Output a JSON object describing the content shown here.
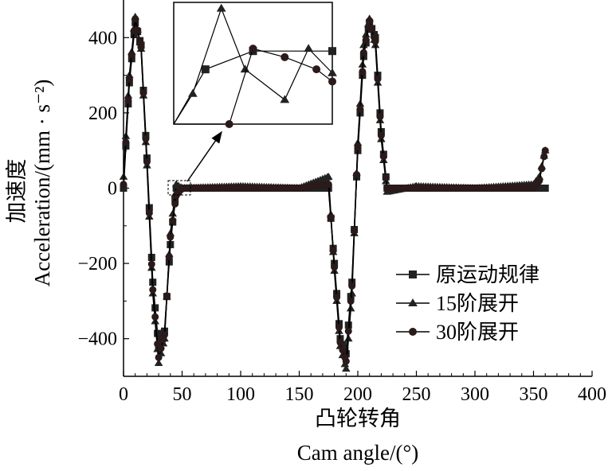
{
  "chart_data": {
    "type": "line",
    "xlabel_cn": "凸轮转角",
    "xlabel_en": "Cam angle/(°)",
    "ylabel_cn": "加速度",
    "ylabel_en": "Acceleration/(mm · s⁻²)",
    "xlim": [
      0,
      400
    ],
    "ylim": [
      -500,
      500
    ],
    "xticks": [
      0,
      50,
      100,
      150,
      200,
      250,
      300,
      350,
      400
    ],
    "yticks": [
      -400,
      -200,
      0,
      200,
      400
    ],
    "legend_position": "lower-right",
    "grid": false,
    "series": [
      {
        "name": "原运动规律",
        "marker": "square",
        "x": [
          0,
          5,
          10,
          15,
          20,
          25,
          30,
          35,
          40,
          45,
          50,
          100,
          150,
          175,
          180,
          185,
          190,
          195,
          200,
          205,
          210,
          215,
          220,
          225,
          250,
          300,
          350,
          355,
          360
        ],
        "y": [
          0,
          280,
          440,
          380,
          80,
          -250,
          -420,
          -380,
          -150,
          0,
          0,
          0,
          0,
          0,
          -200,
          -400,
          -440,
          -250,
          100,
          350,
          440,
          400,
          150,
          0,
          0,
          0,
          0,
          0,
          0
        ]
      },
      {
        "name": "15阶展开",
        "marker": "triangle",
        "x": [
          0,
          5,
          10,
          15,
          20,
          25,
          30,
          35,
          40,
          45,
          50,
          100,
          150,
          175,
          180,
          185,
          190,
          195,
          200,
          205,
          210,
          215,
          220,
          225,
          250,
          300,
          350,
          355,
          360
        ],
        "y": [
          30,
          300,
          455,
          370,
          60,
          -280,
          -465,
          -400,
          -120,
          10,
          0,
          5,
          0,
          30,
          -220,
          -420,
          -480,
          -280,
          120,
          380,
          450,
          380,
          130,
          -10,
          5,
          0,
          10,
          30,
          100
        ]
      },
      {
        "name": "30阶展开",
        "marker": "circle",
        "x": [
          0,
          5,
          10,
          15,
          20,
          25,
          30,
          35,
          40,
          45,
          50,
          100,
          150,
          175,
          180,
          185,
          190,
          195,
          200,
          205,
          210,
          215,
          220,
          225,
          250,
          300,
          350,
          355,
          360
        ],
        "y": [
          10,
          290,
          450,
          375,
          70,
          -270,
          -450,
          -390,
          -130,
          -20,
          0,
          0,
          0,
          10,
          -210,
          -410,
          -460,
          -260,
          110,
          360,
          445,
          390,
          140,
          0,
          0,
          0,
          0,
          20,
          100
        ]
      }
    ],
    "inset": {
      "description_zoom_region": "around x≈40–50, y≈0",
      "series_points": [
        {
          "name": "原运动规律",
          "x": [
            0.0,
            0.2,
            0.5,
            1.0
          ],
          "y": [
            0.0,
            0.45,
            0.6,
            0.6
          ]
        },
        {
          "name": "15阶展开",
          "x": [
            0.0,
            0.12,
            0.3,
            0.45,
            0.7,
            0.85,
            1.0
          ],
          "y": [
            0.0,
            0.25,
            0.95,
            0.45,
            0.2,
            0.62,
            0.42
          ]
        },
        {
          "name": "30阶展开",
          "x": [
            0.0,
            0.35,
            0.5,
            0.7,
            0.9,
            1.0
          ],
          "y": [
            0.0,
            0.0,
            0.62,
            0.55,
            0.45,
            0.35
          ]
        }
      ]
    }
  }
}
